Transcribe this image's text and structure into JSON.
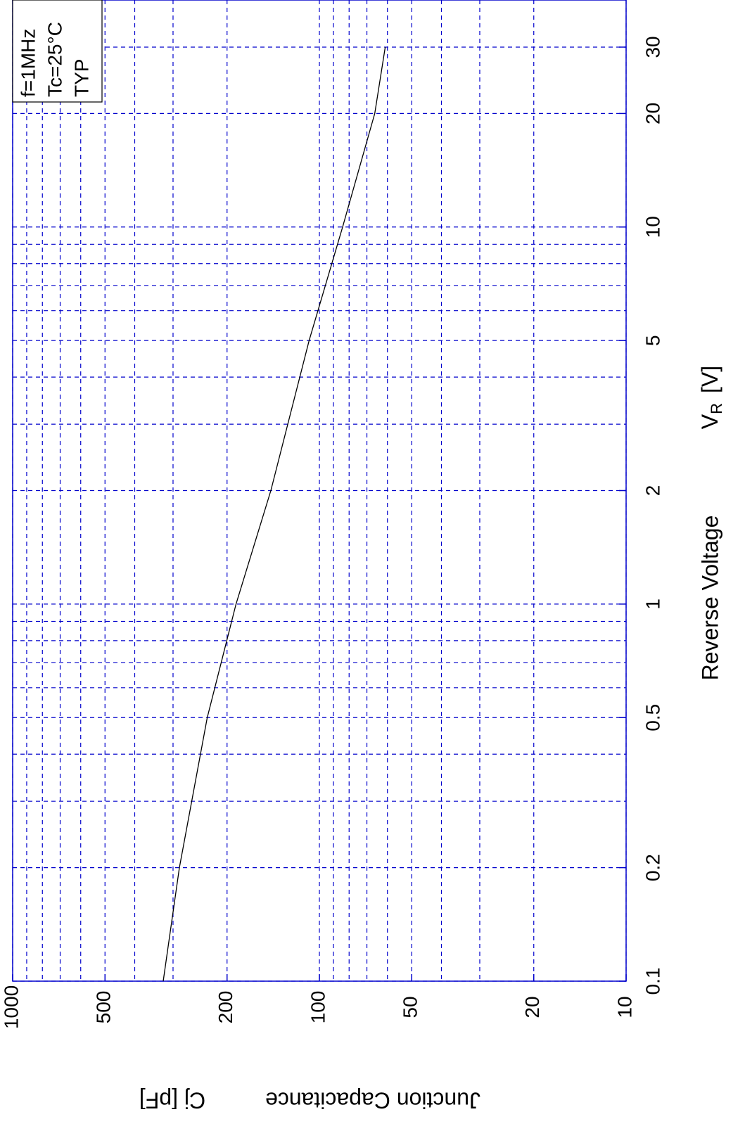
{
  "chart_data": {
    "type": "line",
    "x_label": "Reverse Voltage",
    "x_unit_symbol": "V",
    "x_unit_subscript": "R",
    "x_unit": "[V]",
    "y_label": "Junction Capacitance",
    "y_unit": "Cj [pF]",
    "legend_lines": [
      "f=1MHz",
      "Tc=25°C",
      "TYP"
    ],
    "x": [
      0.1,
      0.2,
      0.5,
      1,
      2,
      5,
      10,
      20,
      30
    ],
    "series": [
      {
        "name": null,
        "color": "#000000",
        "values": [
          323,
          286,
          232,
          187,
          144,
          108,
          84,
          66,
          61
        ]
      }
    ],
    "xlim": [
      0.1,
      40
    ],
    "xticks": [
      0.1,
      0.2,
      0.5,
      1,
      2,
      5,
      10,
      20,
      30
    ],
    "xminor": [
      0.3,
      0.4,
      0.6,
      0.7,
      0.8,
      0.9,
      3,
      4,
      6,
      7,
      8,
      9
    ],
    "ylim": [
      10,
      1000
    ],
    "yticks": [
      10,
      20,
      50,
      100,
      200,
      500,
      1000
    ],
    "yminor": [
      30,
      40,
      60,
      70,
      80,
      90,
      300,
      400,
      600,
      700,
      800,
      900
    ],
    "xscale": "log",
    "yscale": "log",
    "grid": true,
    "grid_color": "#0000cc",
    "axis_color": "#0000cc"
  }
}
